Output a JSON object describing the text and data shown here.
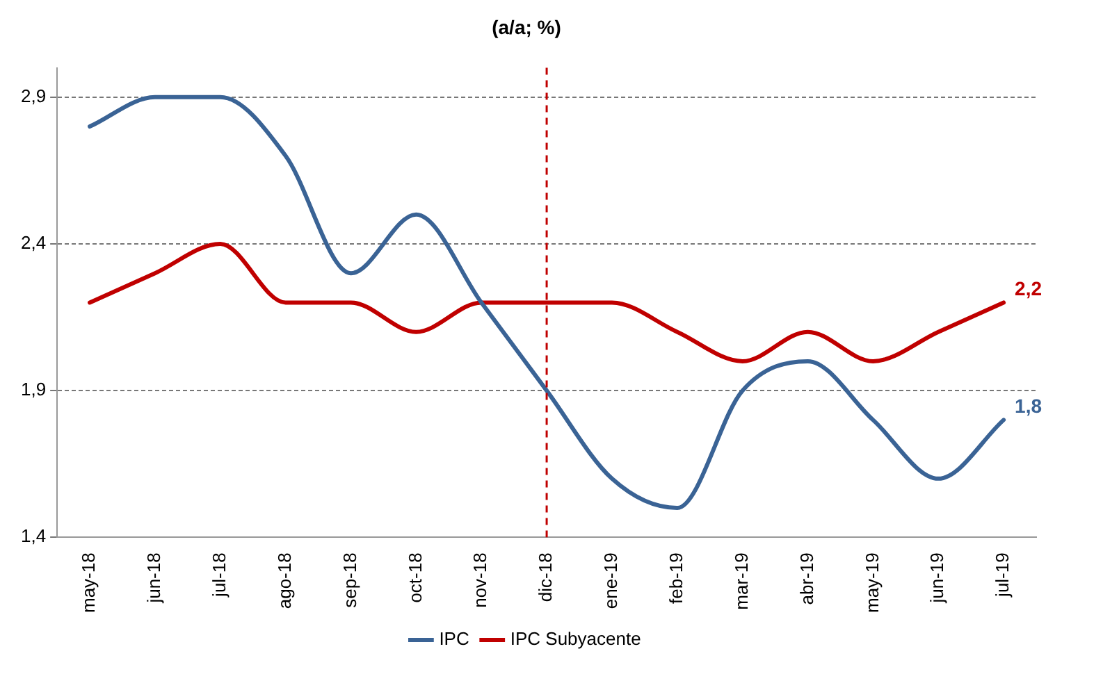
{
  "chart_data": {
    "type": "line",
    "title": "(a/a; %)",
    "categories": [
      "may-18",
      "jun-18",
      "jul-18",
      "ago-18",
      "sep-18",
      "oct-18",
      "nov-18",
      "dic-18",
      "ene-19",
      "feb-19",
      "mar-19",
      "abr-19",
      "may-19",
      "jun-19",
      "jul-19"
    ],
    "series": [
      {
        "name": "IPC",
        "color": "#3a6395",
        "values": [
          2.8,
          2.9,
          2.9,
          2.7,
          2.3,
          2.5,
          2.2,
          1.9,
          1.6,
          1.5,
          1.9,
          2.0,
          1.8,
          1.6,
          1.8
        ],
        "value_labels": [
          null,
          null,
          null,
          null,
          null,
          null,
          null,
          null,
          null,
          null,
          null,
          null,
          null,
          null,
          "1,8"
        ]
      },
      {
        "name": "IPC Subyacente",
        "color": "#c00000",
        "values": [
          2.2,
          2.3,
          2.4,
          2.2,
          2.2,
          2.1,
          2.2,
          2.2,
          2.2,
          2.1,
          2.0,
          2.1,
          2.0,
          2.1,
          2.2
        ],
        "value_labels": [
          null,
          null,
          null,
          null,
          null,
          null,
          null,
          null,
          null,
          null,
          null,
          null,
          null,
          null,
          "2,2"
        ]
      }
    ],
    "ylim": [
      1.4,
      3.0
    ],
    "yticks": [
      {
        "value": 1.4,
        "label": "1,4"
      },
      {
        "value": 1.9,
        "label": "1,9"
      },
      {
        "value": 2.4,
        "label": "2,4"
      },
      {
        "value": 2.9,
        "label": "2,9"
      }
    ],
    "grid": "y",
    "legend": "bottom",
    "marker": "none",
    "line_style": "solid",
    "ref_lines": [
      {
        "axis": "x",
        "value": "dic-18",
        "color": "#c00000",
        "line_style": "dashed"
      }
    ]
  }
}
